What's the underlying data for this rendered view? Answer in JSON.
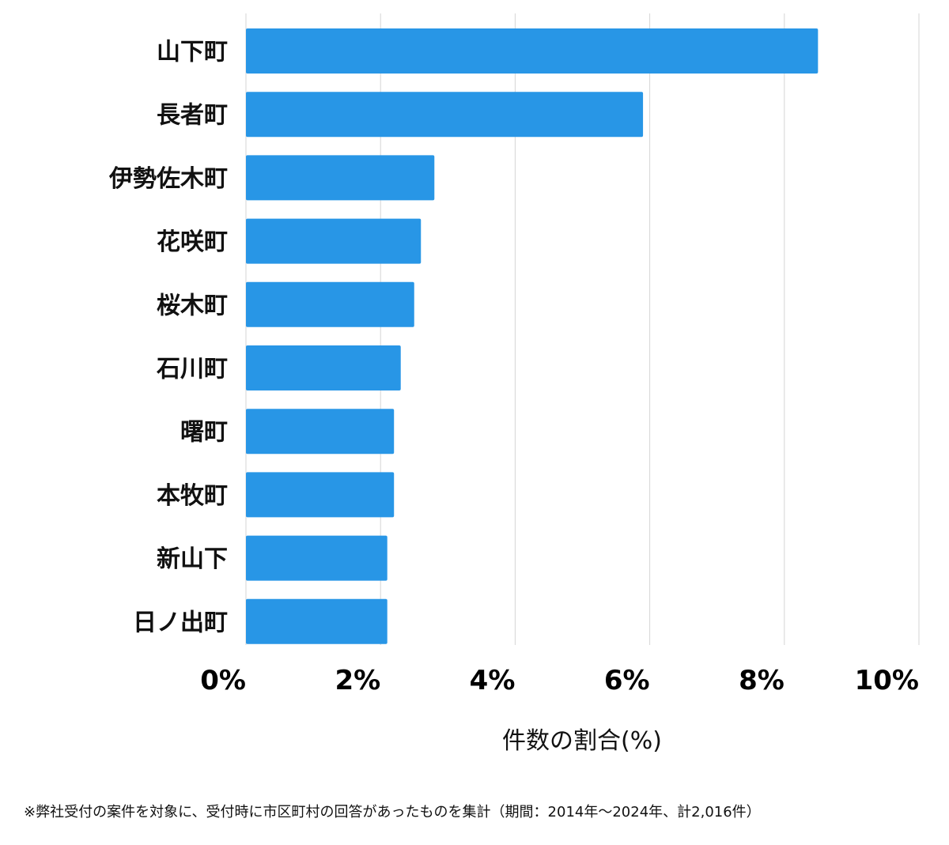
{
  "chart_data": {
    "type": "bar",
    "orientation": "horizontal",
    "categories": [
      "山下町",
      "長者町",
      "伊勢佐木町",
      "花咲町",
      "桜木町",
      "石川町",
      "曙町",
      "本牧町",
      "新山下",
      "日ノ出町"
    ],
    "values": [
      8.5,
      5.9,
      2.8,
      2.6,
      2.5,
      2.3,
      2.2,
      2.2,
      2.1,
      2.1
    ],
    "xlabel": "件数の割合(%)",
    "xlim": [
      0,
      10
    ],
    "ticks": [
      0,
      2,
      4,
      6,
      8,
      10
    ],
    "tick_labels": [
      "0%",
      "2%",
      "4%",
      "6%",
      "8%",
      "10%"
    ],
    "grid": "vertical",
    "bar_color": "#2896e6",
    "grid_color": "#d6d6d6"
  },
  "footnote": "※弊社受付の案件を対象に、受付時に市区町村の回答があったものを集計（期間：2014年～2024年、計2,016件）"
}
